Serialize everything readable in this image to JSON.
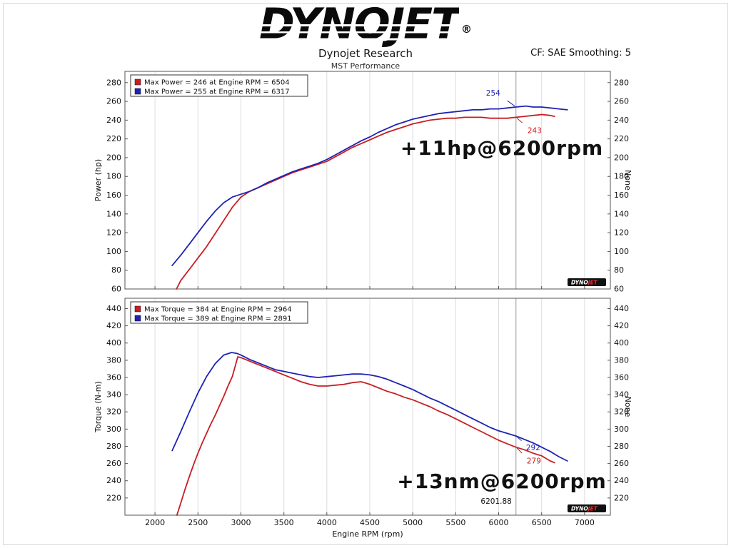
{
  "header": {
    "logo": {
      "dyno": "DYNO",
      "jet": "JET",
      "registered": "®"
    },
    "title": "Dynojet Research",
    "subtitle": "MST Performance",
    "correction": "CF: SAE Smoothing: 5"
  },
  "chart_data": [
    {
      "type": "line",
      "ylabel": "Power (hp)",
      "ylabel_right": "None",
      "xlabel": "",
      "xlim": [
        1650,
        7300
      ],
      "ylim": [
        60,
        292
      ],
      "xticks": [
        2000,
        2500,
        3000,
        3500,
        4000,
        4500,
        5000,
        5500,
        6000,
        6500,
        7000
      ],
      "yticks": [
        60,
        80,
        100,
        120,
        140,
        160,
        180,
        200,
        220,
        240,
        260,
        280
      ],
      "grid": "vertical",
      "legend_position": "top-left",
      "annotation": "+11hp@6200rpm",
      "watermark": {
        "dyno": "DYNO",
        "jet": "JET"
      },
      "cursor": {
        "x": 6201.88,
        "x_label": "",
        "markers": [
          {
            "text": "254",
            "value": 254,
            "color": "#1f22b4"
          },
          {
            "text": "243",
            "value": 243,
            "color": "#c81e22"
          }
        ]
      },
      "series": [
        {
          "name": "Max Power = 246 at Engine RPM = 6504",
          "color": "#c81e22",
          "points": [
            [
              2250,
              60
            ],
            [
              2300,
              69
            ],
            [
              2400,
              81
            ],
            [
              2500,
              93
            ],
            [
              2600,
              105
            ],
            [
              2700,
              119
            ],
            [
              2800,
              133
            ],
            [
              2900,
              147
            ],
            [
              3000,
              158
            ],
            [
              3100,
              164
            ],
            [
              3200,
              168
            ],
            [
              3300,
              172
            ],
            [
              3400,
              176
            ],
            [
              3500,
              180
            ],
            [
              3600,
              184
            ],
            [
              3700,
              187
            ],
            [
              3800,
              190
            ],
            [
              3900,
              193
            ],
            [
              4000,
              196
            ],
            [
              4100,
              201
            ],
            [
              4200,
              206
            ],
            [
              4300,
              211
            ],
            [
              4400,
              215
            ],
            [
              4500,
              219
            ],
            [
              4600,
              223
            ],
            [
              4700,
              227
            ],
            [
              4800,
              230
            ],
            [
              4900,
              233
            ],
            [
              5000,
              236
            ],
            [
              5100,
              238
            ],
            [
              5200,
              240
            ],
            [
              5300,
              241
            ],
            [
              5400,
              242
            ],
            [
              5500,
              242
            ],
            [
              5600,
              243
            ],
            [
              5700,
              243
            ],
            [
              5800,
              243
            ],
            [
              5900,
              242
            ],
            [
              6000,
              242
            ],
            [
              6100,
              242
            ],
            [
              6200,
              243
            ],
            [
              6300,
              244
            ],
            [
              6400,
              245
            ],
            [
              6504,
              246
            ],
            [
              6600,
              245
            ],
            [
              6650,
              244
            ]
          ]
        },
        {
          "name": "Max Power = 255 at Engine RPM = 6317",
          "color": "#1f22b4",
          "points": [
            [
              2200,
              85
            ],
            [
              2300,
              96
            ],
            [
              2400,
              108
            ],
            [
              2500,
              120
            ],
            [
              2600,
              132
            ],
            [
              2700,
              143
            ],
            [
              2800,
              152
            ],
            [
              2900,
              158
            ],
            [
              3000,
              161
            ],
            [
              3100,
              164
            ],
            [
              3200,
              168
            ],
            [
              3300,
              173
            ],
            [
              3400,
              177
            ],
            [
              3500,
              181
            ],
            [
              3600,
              185
            ],
            [
              3700,
              188
            ],
            [
              3800,
              191
            ],
            [
              3900,
              194
            ],
            [
              4000,
              198
            ],
            [
              4100,
              203
            ],
            [
              4200,
              208
            ],
            [
              4300,
              213
            ],
            [
              4400,
              218
            ],
            [
              4500,
              222
            ],
            [
              4600,
              227
            ],
            [
              4700,
              231
            ],
            [
              4800,
              235
            ],
            [
              4900,
              238
            ],
            [
              5000,
              241
            ],
            [
              5100,
              243
            ],
            [
              5200,
              245
            ],
            [
              5300,
              247
            ],
            [
              5400,
              248
            ],
            [
              5500,
              249
            ],
            [
              5600,
              250
            ],
            [
              5700,
              251
            ],
            [
              5800,
              251
            ],
            [
              5900,
              252
            ],
            [
              6000,
              252
            ],
            [
              6100,
              253
            ],
            [
              6200,
              254
            ],
            [
              6317,
              255
            ],
            [
              6400,
              254
            ],
            [
              6500,
              254
            ],
            [
              6600,
              253
            ],
            [
              6700,
              252
            ],
            [
              6800,
              251
            ]
          ]
        }
      ]
    },
    {
      "type": "line",
      "ylabel": "Torque (N-m)",
      "ylabel_right": "None",
      "xlabel": "Engine RPM (rpm)",
      "xlim": [
        1650,
        7300
      ],
      "ylim": [
        200,
        452
      ],
      "xticks": [
        2000,
        2500,
        3000,
        3500,
        4000,
        4500,
        5000,
        5500,
        6000,
        6500,
        7000
      ],
      "yticks": [
        220,
        240,
        260,
        280,
        300,
        320,
        340,
        360,
        380,
        400,
        420,
        440
      ],
      "grid": "vertical",
      "legend_position": "top-left",
      "annotation": "+13nm@6200rpm",
      "watermark": {
        "dyno": "DYNO",
        "jet": "JET"
      },
      "cursor": {
        "x": 6201.88,
        "x_label": "6201.88",
        "markers": [
          {
            "text": "292",
            "value": 292,
            "color": "#1f22b4"
          },
          {
            "text": "279",
            "value": 279,
            "color": "#c81e22"
          }
        ]
      },
      "series": [
        {
          "name": "Max Torque = 384 at Engine RPM = 2964",
          "color": "#c81e22",
          "points": [
            [
              2255,
              200
            ],
            [
              2300,
              214
            ],
            [
              2350,
              230
            ],
            [
              2400,
              245
            ],
            [
              2450,
              259
            ],
            [
              2500,
              272
            ],
            [
              2550,
              284
            ],
            [
              2600,
              295
            ],
            [
              2650,
              306
            ],
            [
              2700,
              316
            ],
            [
              2750,
              327
            ],
            [
              2800,
              338
            ],
            [
              2850,
              350
            ],
            [
              2900,
              361
            ],
            [
              2930,
              372
            ],
            [
              2964,
              384
            ],
            [
              3000,
              383
            ],
            [
              3100,
              379
            ],
            [
              3200,
              375
            ],
            [
              3300,
              371
            ],
            [
              3400,
              367
            ],
            [
              3500,
              363
            ],
            [
              3600,
              359
            ],
            [
              3700,
              355
            ],
            [
              3800,
              352
            ],
            [
              3900,
              350
            ],
            [
              4000,
              350
            ],
            [
              4100,
              351
            ],
            [
              4200,
              352
            ],
            [
              4300,
              354
            ],
            [
              4400,
              355
            ],
            [
              4500,
              352
            ],
            [
              4600,
              348
            ],
            [
              4700,
              344
            ],
            [
              4800,
              341
            ],
            [
              4900,
              337
            ],
            [
              5000,
              334
            ],
            [
              5100,
              330
            ],
            [
              5200,
              326
            ],
            [
              5300,
              321
            ],
            [
              5400,
              317
            ],
            [
              5500,
              312
            ],
            [
              5600,
              307
            ],
            [
              5700,
              302
            ],
            [
              5800,
              297
            ],
            [
              5900,
              292
            ],
            [
              6000,
              287
            ],
            [
              6100,
              283
            ],
            [
              6200,
              279
            ],
            [
              6300,
              276
            ],
            [
              6400,
              272
            ],
            [
              6500,
              269
            ],
            [
              6600,
              263
            ],
            [
              6650,
              261
            ]
          ]
        },
        {
          "name": "Max Torque = 389 at Engine RPM = 2891",
          "color": "#1f22b4",
          "points": [
            [
              2200,
              275
            ],
            [
              2300,
              297
            ],
            [
              2400,
              320
            ],
            [
              2500,
              342
            ],
            [
              2600,
              361
            ],
            [
              2700,
              376
            ],
            [
              2800,
              386
            ],
            [
              2891,
              389
            ],
            [
              2950,
              388
            ],
            [
              3000,
              386
            ],
            [
              3100,
              381
            ],
            [
              3200,
              377
            ],
            [
              3300,
              373
            ],
            [
              3400,
              369
            ],
            [
              3500,
              367
            ],
            [
              3600,
              365
            ],
            [
              3700,
              363
            ],
            [
              3800,
              361
            ],
            [
              3900,
              360
            ],
            [
              4000,
              361
            ],
            [
              4100,
              362
            ],
            [
              4200,
              363
            ],
            [
              4300,
              364
            ],
            [
              4400,
              364
            ],
            [
              4500,
              363
            ],
            [
              4600,
              361
            ],
            [
              4700,
              358
            ],
            [
              4800,
              354
            ],
            [
              4900,
              350
            ],
            [
              5000,
              346
            ],
            [
              5100,
              341
            ],
            [
              5200,
              336
            ],
            [
              5300,
              332
            ],
            [
              5400,
              327
            ],
            [
              5500,
              322
            ],
            [
              5600,
              317
            ],
            [
              5700,
              312
            ],
            [
              5800,
              307
            ],
            [
              5900,
              302
            ],
            [
              6000,
              298
            ],
            [
              6100,
              295
            ],
            [
              6200,
              292
            ],
            [
              6300,
              288
            ],
            [
              6400,
              284
            ],
            [
              6500,
              279
            ],
            [
              6600,
              274
            ],
            [
              6700,
              268
            ],
            [
              6800,
              263
            ]
          ]
        }
      ]
    }
  ]
}
